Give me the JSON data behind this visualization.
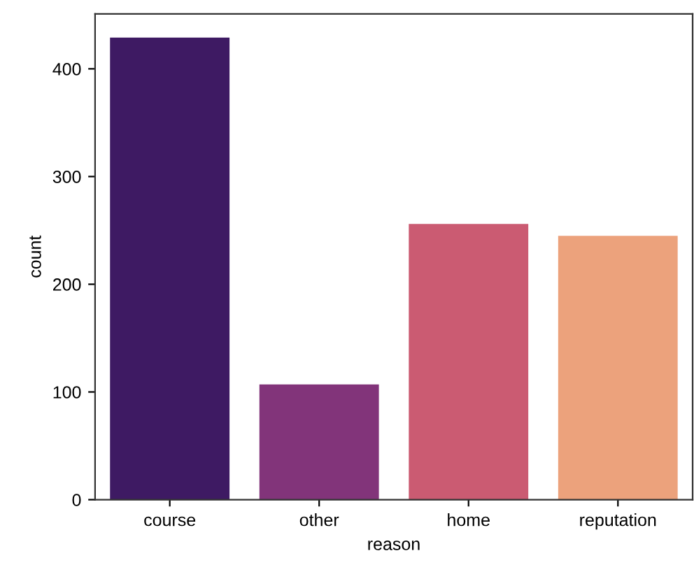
{
  "chart_data": {
    "type": "bar",
    "xlabel": "reason",
    "ylabel": "count",
    "categories": [
      "course",
      "other",
      "home",
      "reputation"
    ],
    "values": [
      429,
      107,
      256,
      245
    ],
    "colors": [
      "#3e1a63",
      "#82347a",
      "#cb5b72",
      "#eca27c"
    ],
    "ylim": [
      0,
      451
    ],
    "yticks": [
      0,
      100,
      200,
      300,
      400
    ],
    "grid": false,
    "legend": false
  }
}
